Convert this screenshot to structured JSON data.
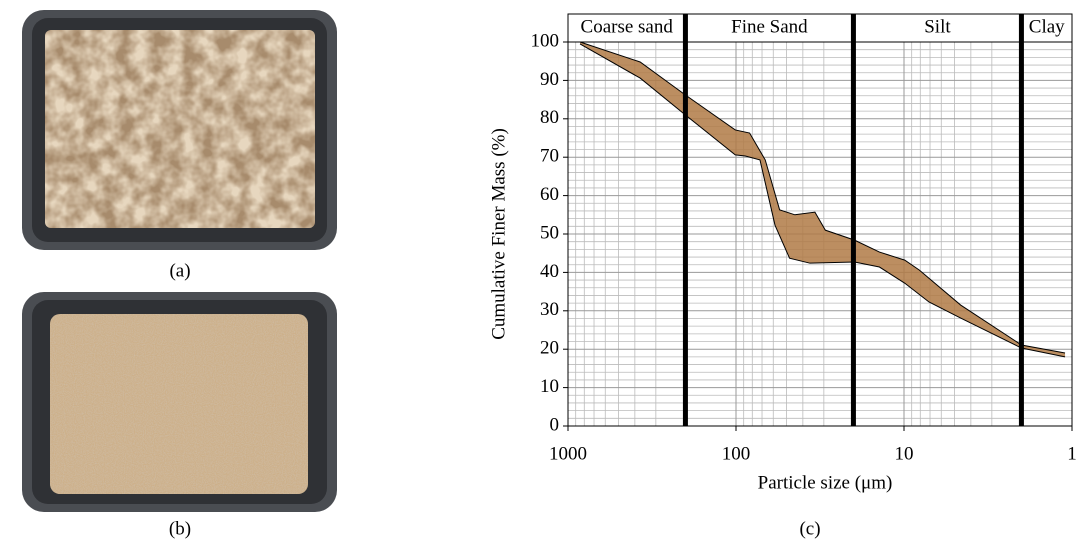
{
  "panels": {
    "a": "(a)",
    "b": "(b)",
    "c": "(c)"
  },
  "chart_data": {
    "type": "band",
    "log_x": true,
    "xlabel": "Particle size (μm)",
    "ylabel": "Cumulative Finer Mass (%)",
    "xlim": [
      1000,
      1
    ],
    "xticks": [
      1000,
      100,
      10,
      1
    ],
    "ylim": [
      0,
      100
    ],
    "yticks": [
      0,
      10,
      20,
      30,
      40,
      50,
      60,
      70,
      80,
      90,
      100
    ],
    "x_minor_grid": [
      900,
      800,
      700,
      600,
      500,
      400,
      300,
      200,
      90,
      80,
      70,
      60,
      50,
      40,
      30,
      20,
      9,
      8,
      7,
      6,
      5,
      4,
      3,
      2
    ],
    "y_minor_grid": [
      2,
      4,
      6,
      8,
      12,
      14,
      16,
      18,
      22,
      24,
      26,
      28,
      32,
      34,
      36,
      38,
      42,
      44,
      46,
      48,
      52,
      54,
      56,
      58,
      62,
      64,
      66,
      68,
      72,
      74,
      76,
      78,
      82,
      84,
      86,
      88,
      92,
      94,
      96,
      98
    ],
    "boundaries": [
      200,
      20,
      2
    ],
    "zones": [
      "Coarse sand",
      "Fine Sand",
      "Silt",
      "Clay"
    ],
    "color": "#b07a45",
    "upper": {
      "x": [
        848,
        372,
        200,
        101,
        83,
        67,
        55,
        44.6,
        33.9,
        29.4,
        19.7,
        14,
        9.9,
        8.1,
        4.6,
        2,
        1.1
      ],
      "values": [
        100,
        94.8,
        86.2,
        77.1,
        76.3,
        69.3,
        56.3,
        55,
        55.7,
        51,
        48.4,
        45.3,
        43.2,
        40.6,
        31.5,
        21.1,
        19
      ]
    },
    "lower": {
      "x": [
        848,
        372,
        200,
        101,
        88,
        72,
        58.6,
        48,
        36.3,
        19.7,
        14,
        9.9,
        7.1,
        4.6,
        2,
        1.1
      ],
      "values": [
        99.5,
        90.6,
        81,
        70.6,
        70.3,
        69.3,
        52.3,
        43.7,
        42.4,
        42.7,
        41.4,
        37.2,
        32.3,
        28.1,
        20.3,
        18
      ]
    }
  }
}
